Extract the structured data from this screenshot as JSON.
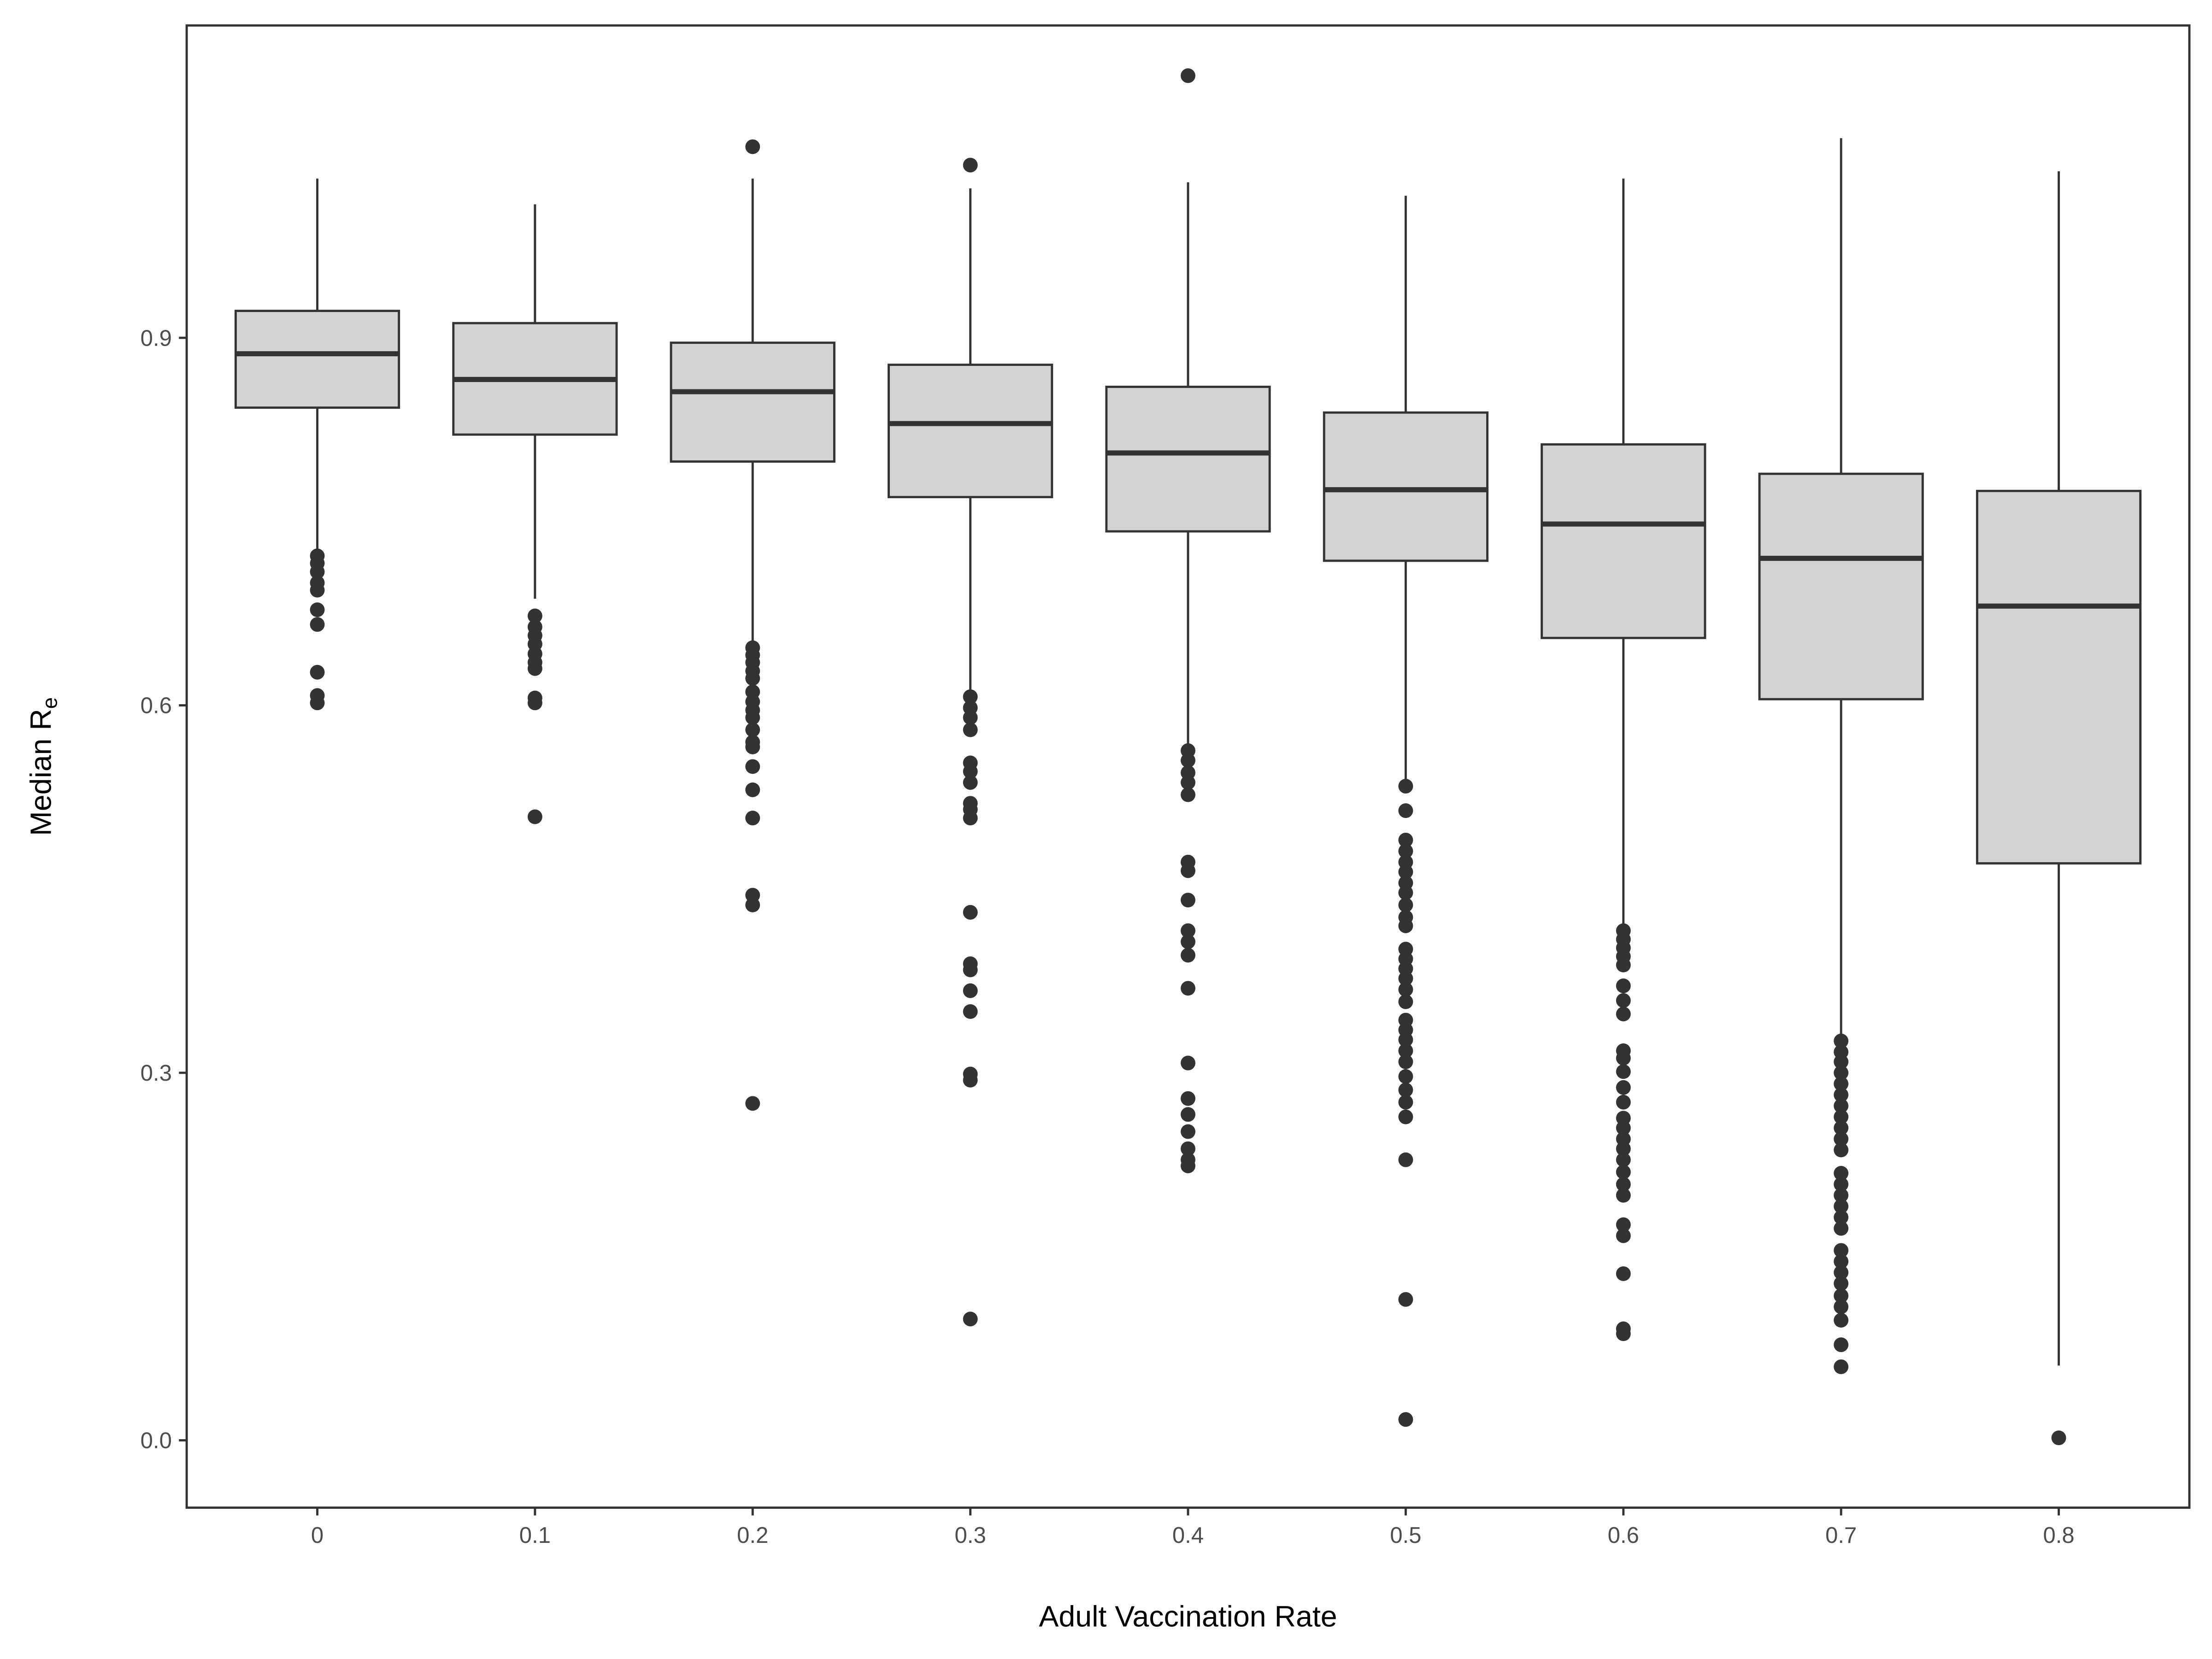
{
  "chart_data": {
    "type": "box",
    "xlabel": "Adult Vaccination Rate",
    "ylabel_main": "Median R",
    "ylabel_subscript": "e",
    "ylim": [
      -0.055,
      1.155
    ],
    "yticks": [
      0.0,
      0.3,
      0.6,
      0.9
    ],
    "ytick_labels": [
      "0.0",
      "0.3",
      "0.6",
      "0.9"
    ],
    "categories": [
      "0",
      "0.1",
      "0.2",
      "0.3",
      "0.4",
      "0.5",
      "0.6",
      "0.7",
      "0.8"
    ],
    "grid": false,
    "legend": "none",
    "colors": {
      "box_fill": "#d3d3d3",
      "stroke": "#333333",
      "panel_border": "#333333",
      "tick_text": "#4d4d4d",
      "title_text": "#000000"
    },
    "boxes": [
      {
        "x": "0",
        "lower_whisker": 0.727,
        "q1": 0.843,
        "median": 0.887,
        "q3": 0.922,
        "upper_whisker": 1.03,
        "outliers": [
          0.722,
          0.716,
          0.709,
          0.7,
          0.694,
          0.678,
          0.666,
          0.627,
          0.608,
          0.602
        ]
      },
      {
        "x": "0.1",
        "lower_whisker": 0.687,
        "q1": 0.821,
        "median": 0.866,
        "q3": 0.912,
        "upper_whisker": 1.009,
        "outliers": [
          0.673,
          0.664,
          0.657,
          0.65,
          0.642,
          0.635,
          0.63,
          0.606,
          0.602,
          0.509
        ]
      },
      {
        "x": "0.2",
        "lower_whisker": 0.648,
        "q1": 0.799,
        "median": 0.856,
        "q3": 0.896,
        "upper_whisker": 1.03,
        "outliers": [
          1.056,
          0.647,
          0.641,
          0.635,
          0.628,
          0.622,
          0.611,
          0.603,
          0.596,
          0.59,
          0.58,
          0.57,
          0.566,
          0.55,
          0.531,
          0.508,
          0.445,
          0.437,
          0.275
        ]
      },
      {
        "x": "0.3",
        "lower_whisker": 0.61,
        "q1": 0.77,
        "median": 0.83,
        "q3": 0.878,
        "upper_whisker": 1.022,
        "outliers": [
          1.041,
          0.607,
          0.598,
          0.59,
          0.58,
          0.553,
          0.546,
          0.537,
          0.52,
          0.515,
          0.508,
          0.431,
          0.389,
          0.384,
          0.367,
          0.35,
          0.299,
          0.294,
          0.099
        ]
      },
      {
        "x": "0.4",
        "lower_whisker": 0.566,
        "q1": 0.742,
        "median": 0.806,
        "q3": 0.86,
        "upper_whisker": 1.027,
        "outliers": [
          1.114,
          0.563,
          0.555,
          0.545,
          0.537,
          0.527,
          0.472,
          0.465,
          0.441,
          0.416,
          0.407,
          0.396,
          0.369,
          0.308,
          0.279,
          0.266,
          0.252,
          0.238,
          0.229,
          0.224
        ]
      },
      {
        "x": "0.5",
        "lower_whisker": 0.54,
        "q1": 0.718,
        "median": 0.776,
        "q3": 0.839,
        "upper_whisker": 1.016,
        "outliers": [
          0.534,
          0.514,
          0.49,
          0.481,
          0.472,
          0.464,
          0.455,
          0.447,
          0.437,
          0.427,
          0.42,
          0.401,
          0.393,
          0.385,
          0.377,
          0.368,
          0.358,
          0.343,
          0.335,
          0.327,
          0.318,
          0.309,
          0.297,
          0.286,
          0.276,
          0.264,
          0.229,
          0.115,
          0.017
        ]
      },
      {
        "x": "0.6",
        "lower_whisker": 0.42,
        "q1": 0.655,
        "median": 0.748,
        "q3": 0.813,
        "upper_whisker": 1.03,
        "outliers": [
          0.416,
          0.409,
          0.402,
          0.395,
          0.388,
          0.371,
          0.359,
          0.348,
          0.318,
          0.312,
          0.301,
          0.288,
          0.276,
          0.263,
          0.255,
          0.246,
          0.238,
          0.229,
          0.219,
          0.209,
          0.2,
          0.176,
          0.167,
          0.136,
          0.091,
          0.087
        ]
      },
      {
        "x": "0.7",
        "lower_whisker": 0.33,
        "q1": 0.605,
        "median": 0.72,
        "q3": 0.789,
        "upper_whisker": 1.063,
        "outliers": [
          0.326,
          0.317,
          0.309,
          0.3,
          0.291,
          0.282,
          0.273,
          0.264,
          0.255,
          0.246,
          0.237,
          0.218,
          0.209,
          0.2,
          0.191,
          0.182,
          0.173,
          0.155,
          0.146,
          0.137,
          0.128,
          0.118,
          0.109,
          0.098,
          0.078,
          0.06
        ]
      },
      {
        "x": "0.8",
        "lower_whisker": 0.061,
        "q1": 0.471,
        "median": 0.681,
        "q3": 0.775,
        "upper_whisker": 1.036,
        "outliers": [
          0.002
        ]
      }
    ]
  }
}
